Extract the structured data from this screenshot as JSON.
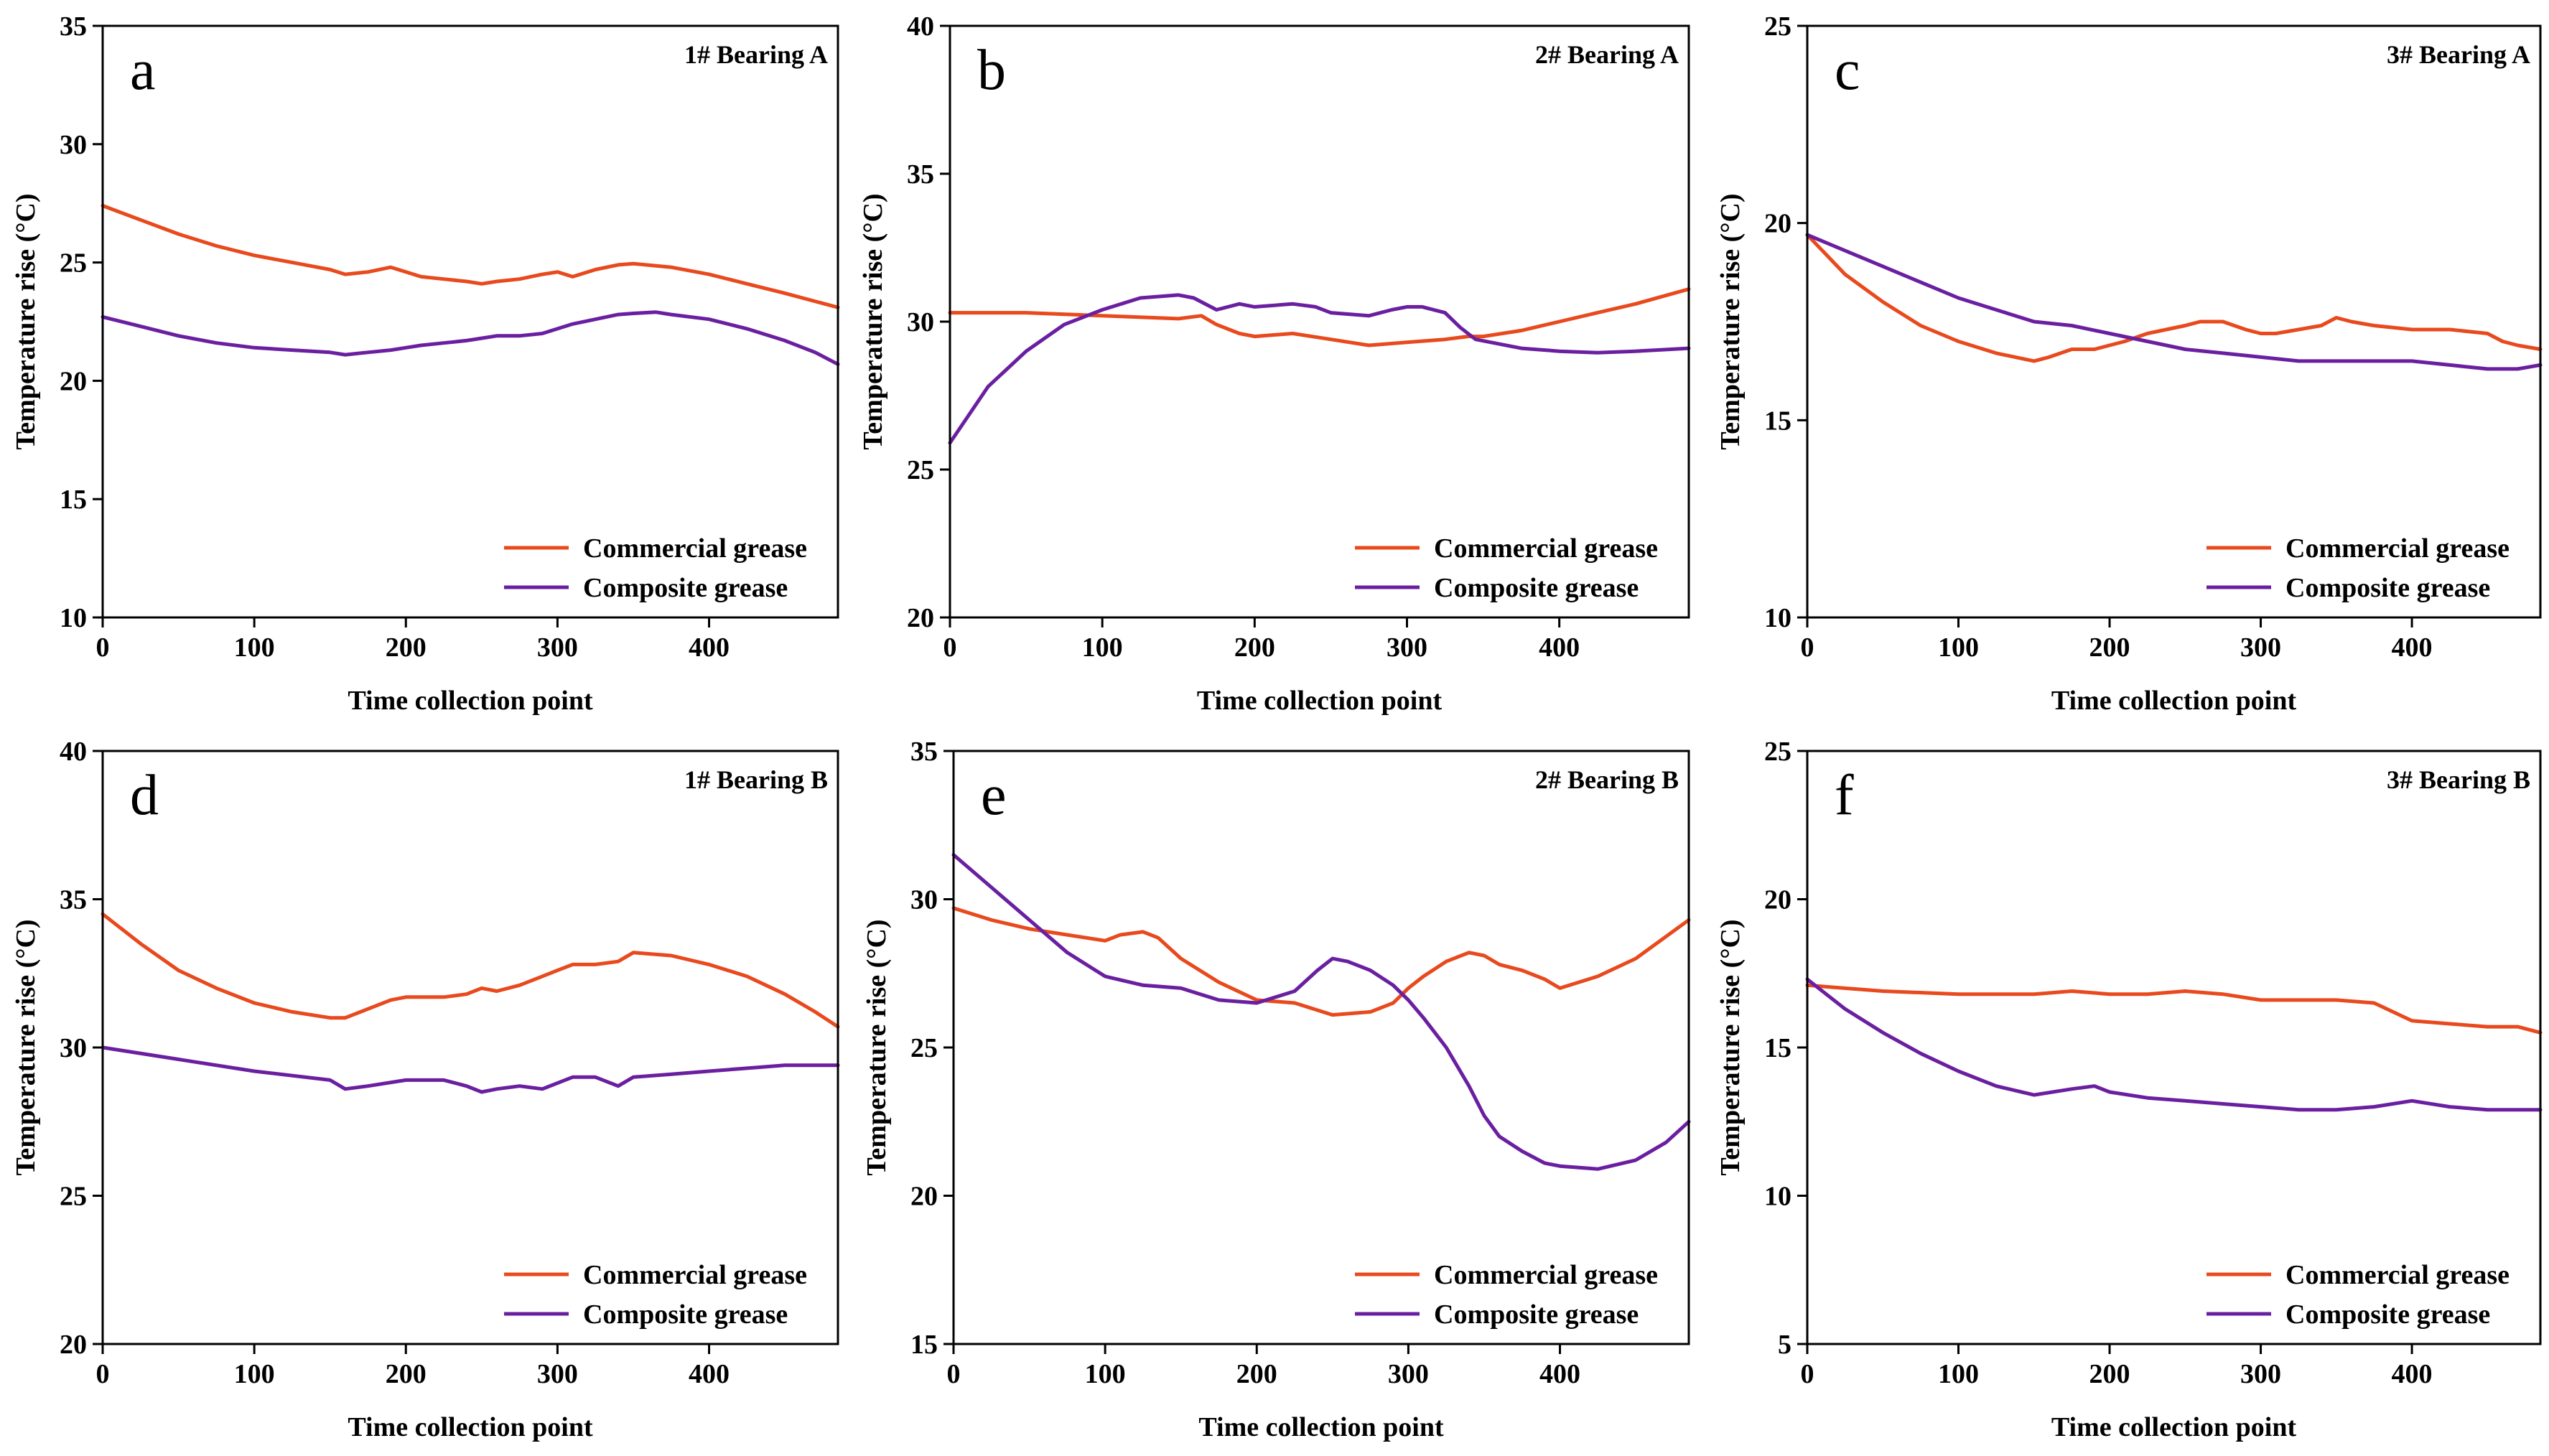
{
  "colors": {
    "commercial": "#E8491D",
    "composite": "#6A1FA0"
  },
  "chart_data": [
    {
      "id": "a",
      "letter": "a",
      "title": "1# Bearing A",
      "type": "line",
      "xlabel": "Time collection point",
      "ylabel": "Temperature rise (°C)",
      "xlim": [
        0,
        485
      ],
      "ylim": [
        10,
        35
      ],
      "xticks": [
        0,
        100,
        200,
        300,
        400
      ],
      "yticks": [
        10,
        15,
        20,
        25,
        30,
        35
      ],
      "series": [
        {
          "name": "Commercial grease",
          "color": "#E8491D",
          "x": [
            0,
            25,
            50,
            75,
            100,
            125,
            150,
            160,
            175,
            190,
            200,
            210,
            225,
            240,
            250,
            260,
            275,
            290,
            300,
            310,
            325,
            340,
            350,
            375,
            400,
            425,
            450,
            485
          ],
          "y": [
            27.4,
            26.8,
            26.2,
            25.7,
            25.3,
            25.0,
            24.7,
            24.5,
            24.6,
            24.8,
            24.6,
            24.4,
            24.3,
            24.2,
            24.1,
            24.2,
            24.3,
            24.5,
            24.6,
            24.4,
            24.7,
            24.9,
            24.95,
            24.8,
            24.5,
            24.1,
            23.7,
            23.1
          ]
        },
        {
          "name": "Composite grease",
          "color": "#6A1FA0",
          "x": [
            0,
            25,
            50,
            75,
            100,
            125,
            150,
            160,
            175,
            190,
            200,
            210,
            225,
            240,
            250,
            260,
            275,
            290,
            300,
            310,
            325,
            340,
            350,
            365,
            375,
            400,
            425,
            450,
            470,
            485
          ],
          "y": [
            22.7,
            22.3,
            21.9,
            21.6,
            21.4,
            21.3,
            21.2,
            21.1,
            21.2,
            21.3,
            21.4,
            21.5,
            21.6,
            21.7,
            21.8,
            21.9,
            21.9,
            22.0,
            22.2,
            22.4,
            22.6,
            22.8,
            22.85,
            22.9,
            22.8,
            22.6,
            22.2,
            21.7,
            21.2,
            20.7
          ]
        }
      ],
      "legend": {
        "position": "bottom-right",
        "entries": [
          "Commercial grease",
          "Composite grease"
        ]
      }
    },
    {
      "id": "b",
      "letter": "b",
      "title": "2# Bearing A",
      "type": "line",
      "xlabel": "Time collection point",
      "ylabel": "Temperature rise (°C)",
      "xlim": [
        0,
        485
      ],
      "ylim": [
        20,
        40
      ],
      "xticks": [
        0,
        100,
        200,
        300,
        400
      ],
      "yticks": [
        20,
        25,
        30,
        35,
        40
      ],
      "series": [
        {
          "name": "Commercial grease",
          "color": "#E8491D",
          "x": [
            0,
            50,
            100,
            150,
            165,
            175,
            190,
            200,
            225,
            250,
            275,
            300,
            325,
            340,
            350,
            375,
            400,
            425,
            450,
            485
          ],
          "y": [
            30.3,
            30.3,
            30.2,
            30.1,
            30.2,
            29.9,
            29.6,
            29.5,
            29.6,
            29.4,
            29.2,
            29.3,
            29.4,
            29.5,
            29.5,
            29.7,
            30.0,
            30.3,
            30.6,
            31.1
          ]
        },
        {
          "name": "Composite grease",
          "color": "#6A1FA0",
          "x": [
            0,
            25,
            50,
            75,
            100,
            125,
            150,
            160,
            175,
            190,
            200,
            225,
            240,
            250,
            275,
            290,
            300,
            310,
            325,
            335,
            345,
            375,
            400,
            425,
            450,
            485
          ],
          "y": [
            25.9,
            27.8,
            29.0,
            29.9,
            30.4,
            30.8,
            30.9,
            30.8,
            30.4,
            30.6,
            30.5,
            30.6,
            30.5,
            30.3,
            30.2,
            30.4,
            30.5,
            30.5,
            30.3,
            29.8,
            29.4,
            29.1,
            29.0,
            28.95,
            29.0,
            29.1
          ]
        }
      ],
      "legend": {
        "position": "bottom-right",
        "entries": [
          "Commercial grease",
          "Composite grease"
        ]
      }
    },
    {
      "id": "c",
      "letter": "c",
      "title": "3# Bearing A",
      "type": "line",
      "xlabel": "Time collection point",
      "ylabel": "Temperature rise (°C)",
      "xlim": [
        0,
        485
      ],
      "ylim": [
        10,
        25
      ],
      "xticks": [
        0,
        100,
        200,
        300,
        400
      ],
      "yticks": [
        10,
        15,
        20,
        25
      ],
      "series": [
        {
          "name": "Commercial grease",
          "color": "#E8491D",
          "x": [
            0,
            25,
            50,
            75,
            100,
            125,
            150,
            160,
            175,
            190,
            200,
            210,
            225,
            250,
            260,
            275,
            290,
            300,
            310,
            325,
            340,
            350,
            360,
            375,
            400,
            425,
            450,
            460,
            470,
            485
          ],
          "y": [
            19.7,
            18.7,
            18.0,
            17.4,
            17.0,
            16.7,
            16.5,
            16.6,
            16.8,
            16.8,
            16.9,
            17.0,
            17.2,
            17.4,
            17.5,
            17.5,
            17.3,
            17.2,
            17.2,
            17.3,
            17.4,
            17.6,
            17.5,
            17.4,
            17.3,
            17.3,
            17.2,
            17.0,
            16.9,
            16.8
          ]
        },
        {
          "name": "Composite grease",
          "color": "#6A1FA0",
          "x": [
            0,
            25,
            50,
            75,
            100,
            125,
            150,
            175,
            200,
            225,
            250,
            275,
            300,
            325,
            350,
            375,
            400,
            425,
            450,
            470,
            485
          ],
          "y": [
            19.7,
            19.3,
            18.9,
            18.5,
            18.1,
            17.8,
            17.5,
            17.4,
            17.2,
            17.0,
            16.8,
            16.7,
            16.6,
            16.5,
            16.5,
            16.5,
            16.5,
            16.4,
            16.3,
            16.3,
            16.4
          ]
        }
      ],
      "legend": {
        "position": "bottom-right",
        "entries": [
          "Commercial grease",
          "Composite grease"
        ]
      }
    },
    {
      "id": "d",
      "letter": "d",
      "title": "1# Bearing B",
      "type": "line",
      "xlabel": "Time collection point",
      "ylabel": "Temperature rise (°C)",
      "xlim": [
        0,
        485
      ],
      "ylim": [
        20,
        40
      ],
      "xticks": [
        0,
        100,
        200,
        300,
        400
      ],
      "yticks": [
        20,
        25,
        30,
        35,
        40
      ],
      "series": [
        {
          "name": "Commercial grease",
          "color": "#E8491D",
          "x": [
            0,
            25,
            50,
            75,
            100,
            125,
            150,
            160,
            175,
            190,
            200,
            225,
            240,
            250,
            260,
            275,
            290,
            300,
            310,
            325,
            340,
            350,
            375,
            400,
            425,
            450,
            470,
            485
          ],
          "y": [
            34.5,
            33.5,
            32.6,
            32.0,
            31.5,
            31.2,
            31.0,
            31.0,
            31.3,
            31.6,
            31.7,
            31.7,
            31.8,
            32.0,
            31.9,
            32.1,
            32.4,
            32.6,
            32.8,
            32.8,
            32.9,
            33.2,
            33.1,
            32.8,
            32.4,
            31.8,
            31.2,
            30.7
          ]
        },
        {
          "name": "Composite grease",
          "color": "#6A1FA0",
          "x": [
            0,
            50,
            100,
            150,
            160,
            175,
            200,
            225,
            240,
            250,
            260,
            275,
            290,
            300,
            310,
            325,
            340,
            350,
            375,
            400,
            425,
            450,
            485
          ],
          "y": [
            30.0,
            29.6,
            29.2,
            28.9,
            28.6,
            28.7,
            28.9,
            28.9,
            28.7,
            28.5,
            28.6,
            28.7,
            28.6,
            28.8,
            29.0,
            29.0,
            28.7,
            29.0,
            29.1,
            29.2,
            29.3,
            29.4,
            29.4
          ]
        }
      ],
      "legend": {
        "position": "bottom-right",
        "entries": [
          "Commercial grease",
          "Composite grease"
        ]
      }
    },
    {
      "id": "e",
      "letter": "e",
      "title": "2# Bearing B",
      "type": "line",
      "xlabel": "Time collection point",
      "ylabel": "Temperature rise (°C)",
      "xlim": [
        0,
        485
      ],
      "ylim": [
        15,
        35
      ],
      "xticks": [
        0,
        100,
        200,
        300,
        400
      ],
      "yticks": [
        15,
        20,
        25,
        30,
        35
      ],
      "series": [
        {
          "name": "Commercial grease",
          "color": "#E8491D",
          "x": [
            0,
            25,
            50,
            75,
            100,
            110,
            125,
            135,
            150,
            175,
            200,
            225,
            250,
            275,
            290,
            300,
            310,
            325,
            340,
            350,
            360,
            375,
            390,
            400,
            425,
            450,
            485
          ],
          "y": [
            29.7,
            29.3,
            29.0,
            28.8,
            28.6,
            28.8,
            28.9,
            28.7,
            28.0,
            27.2,
            26.6,
            26.5,
            26.1,
            26.2,
            26.5,
            27.0,
            27.4,
            27.9,
            28.2,
            28.1,
            27.8,
            27.6,
            27.3,
            27.0,
            27.4,
            28.0,
            29.3
          ]
        },
        {
          "name": "Composite grease",
          "color": "#6A1FA0",
          "x": [
            0,
            25,
            50,
            75,
            100,
            125,
            150,
            175,
            200,
            225,
            240,
            250,
            260,
            275,
            290,
            300,
            310,
            325,
            340,
            350,
            360,
            375,
            390,
            400,
            425,
            450,
            470,
            485
          ],
          "y": [
            31.5,
            30.4,
            29.3,
            28.2,
            27.4,
            27.1,
            27.0,
            26.6,
            26.5,
            26.9,
            27.6,
            28.0,
            27.9,
            27.6,
            27.1,
            26.6,
            26.0,
            25.0,
            23.7,
            22.7,
            22.0,
            21.5,
            21.1,
            21.0,
            20.9,
            21.2,
            21.8,
            22.5
          ]
        }
      ],
      "legend": {
        "position": "bottom-right",
        "entries": [
          "Commercial grease",
          "Composite grease"
        ]
      }
    },
    {
      "id": "f",
      "letter": "f",
      "title": "3# Bearing B",
      "type": "line",
      "xlabel": "Time collection point",
      "ylabel": "Temperature rise (°C)",
      "xlim": [
        0,
        485
      ],
      "ylim": [
        5,
        25
      ],
      "xticks": [
        0,
        100,
        200,
        300,
        400
      ],
      "yticks": [
        5,
        10,
        15,
        20,
        25
      ],
      "series": [
        {
          "name": "Commercial grease",
          "color": "#E8491D",
          "x": [
            0,
            50,
            100,
            150,
            175,
            200,
            225,
            250,
            275,
            300,
            325,
            350,
            375,
            400,
            425,
            450,
            470,
            485
          ],
          "y": [
            17.1,
            16.9,
            16.8,
            16.8,
            16.9,
            16.8,
            16.8,
            16.9,
            16.8,
            16.6,
            16.6,
            16.6,
            16.5,
            15.9,
            15.8,
            15.7,
            15.7,
            15.5
          ]
        },
        {
          "name": "Composite grease",
          "color": "#6A1FA0",
          "x": [
            0,
            25,
            50,
            75,
            100,
            125,
            150,
            175,
            190,
            200,
            225,
            250,
            275,
            300,
            325,
            350,
            375,
            400,
            425,
            450,
            485
          ],
          "y": [
            17.3,
            16.3,
            15.5,
            14.8,
            14.2,
            13.7,
            13.4,
            13.6,
            13.7,
            13.5,
            13.3,
            13.2,
            13.1,
            13.0,
            12.9,
            12.9,
            13.0,
            13.2,
            13.0,
            12.9,
            12.9
          ]
        }
      ],
      "legend": {
        "position": "bottom-right",
        "entries": [
          "Commercial grease",
          "Composite grease"
        ]
      }
    }
  ]
}
